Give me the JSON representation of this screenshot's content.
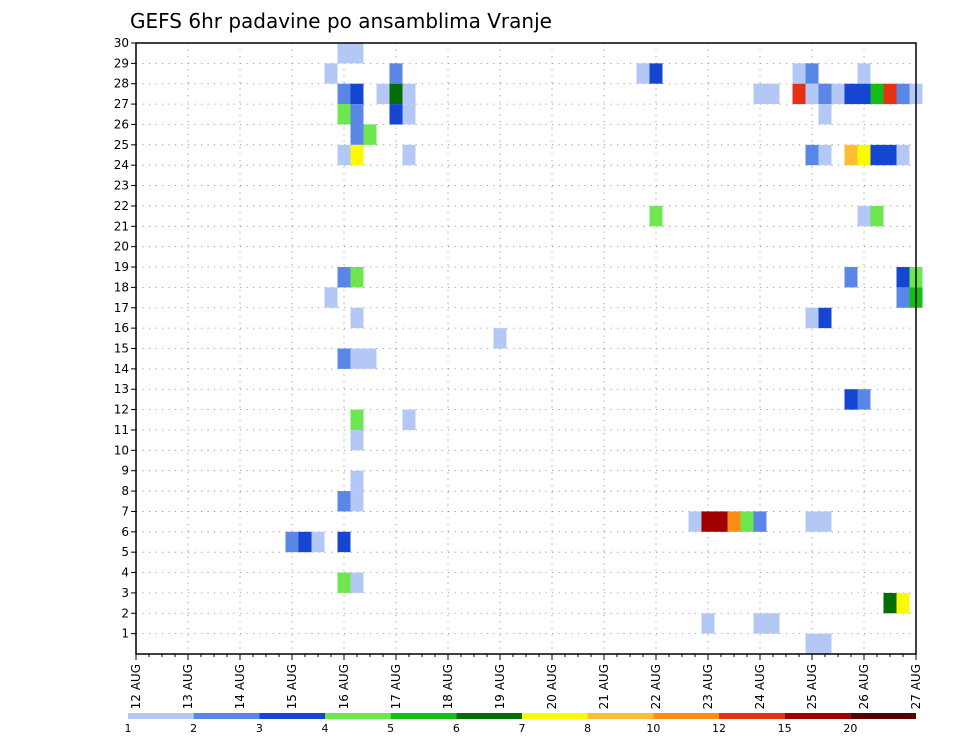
{
  "chart_data": {
    "type": "heatmap",
    "title": "GEFS 6hr padavine po ansamblima Vranje",
    "xlabel": "",
    "ylabel": "",
    "x_tick_labels": [
      "12 AUG",
      "13 AUG",
      "14 AUG",
      "15 AUG",
      "16 AUG",
      "17 AUG",
      "18 AUG",
      "19 AUG",
      "20 AUG",
      "21 AUG",
      "22 AUG",
      "23 AUG",
      "24 AUG",
      "25 AUG",
      "26 AUG",
      "27 AUG"
    ],
    "y_tick_labels": [
      "1",
      "2",
      "3",
      "4",
      "5",
      "6",
      "7",
      "8",
      "9",
      "10",
      "11",
      "12",
      "13",
      "14",
      "15",
      "16",
      "17",
      "18",
      "19",
      "20",
      "21",
      "22",
      "23",
      "24",
      "25",
      "26",
      "27",
      "28",
      "29",
      "30"
    ],
    "x_range": [
      "12 AUG 00Z",
      "27 AUG 00Z"
    ],
    "time_step_hours": 6,
    "y_range": [
      0,
      30
    ],
    "grid": true,
    "legend": {
      "placement": "bottom",
      "levels": [
        1,
        2,
        3,
        4,
        5,
        6,
        7,
        8,
        10,
        12,
        15,
        20
      ],
      "colors": [
        "#b4c8f5",
        "#5a87e6",
        "#1446d2",
        "#6ee650",
        "#14be14",
        "#006e00",
        "#fafa00",
        "#ffbe32",
        "#ff8c14",
        "#e63214",
        "#a00000",
        "#5a0000"
      ]
    },
    "cells": [
      {
        "t": "16 AUG 00Z",
        "m": 30,
        "v": 1
      },
      {
        "t": "16 AUG 06Z",
        "m": 30,
        "v": 1
      },
      {
        "t": "15 AUG 18Z",
        "m": 29,
        "v": 1
      },
      {
        "t": "17 AUG 00Z",
        "m": 29,
        "v": 2
      },
      {
        "t": "21 AUG 18Z",
        "m": 29,
        "v": 1
      },
      {
        "t": "22 AUG 00Z",
        "m": 29,
        "v": 3
      },
      {
        "t": "24 AUG 18Z",
        "m": 29,
        "v": 1
      },
      {
        "t": "25 AUG 00Z",
        "m": 29,
        "v": 2
      },
      {
        "t": "26 AUG 00Z",
        "m": 29,
        "v": 1
      },
      {
        "t": "16 AUG 00Z",
        "m": 28,
        "v": 2
      },
      {
        "t": "16 AUG 06Z",
        "m": 28,
        "v": 3
      },
      {
        "t": "16 AUG 18Z",
        "m": 28,
        "v": 1
      },
      {
        "t": "17 AUG 00Z",
        "m": 28,
        "v": 6
      },
      {
        "t": "17 AUG 06Z",
        "m": 28,
        "v": 1
      },
      {
        "t": "24 AUG 00Z",
        "m": 28,
        "v": 1
      },
      {
        "t": "24 AUG 06Z",
        "m": 28,
        "v": 1
      },
      {
        "t": "24 AUG 18Z",
        "m": 28,
        "v": 12
      },
      {
        "t": "25 AUG 00Z",
        "m": 28,
        "v": 1
      },
      {
        "t": "25 AUG 06Z",
        "m": 28,
        "v": 2
      },
      {
        "t": "25 AUG 12Z",
        "m": 28,
        "v": 1
      },
      {
        "t": "25 AUG 18Z",
        "m": 28,
        "v": 3
      },
      {
        "t": "26 AUG 00Z",
        "m": 28,
        "v": 3
      },
      {
        "t": "26 AUG 06Z",
        "m": 28,
        "v": 5
      },
      {
        "t": "26 AUG 12Z",
        "m": 28,
        "v": 12
      },
      {
        "t": "26 AUG 18Z",
        "m": 28,
        "v": 2
      },
      {
        "t": "27 AUG 00Z",
        "m": 28,
        "v": 1
      },
      {
        "t": "16 AUG 00Z",
        "m": 27,
        "v": 4
      },
      {
        "t": "16 AUG 06Z",
        "m": 27,
        "v": 2
      },
      {
        "t": "17 AUG 00Z",
        "m": 27,
        "v": 3
      },
      {
        "t": "17 AUG 06Z",
        "m": 27,
        "v": 1
      },
      {
        "t": "25 AUG 06Z",
        "m": 27,
        "v": 1
      },
      {
        "t": "16 AUG 06Z",
        "m": 26,
        "v": 2
      },
      {
        "t": "16 AUG 12Z",
        "m": 26,
        "v": 4
      },
      {
        "t": "16 AUG 00Z",
        "m": 25,
        "v": 1
      },
      {
        "t": "16 AUG 06Z",
        "m": 25,
        "v": 7
      },
      {
        "t": "17 AUG 06Z",
        "m": 25,
        "v": 1
      },
      {
        "t": "25 AUG 00Z",
        "m": 25,
        "v": 2
      },
      {
        "t": "25 AUG 06Z",
        "m": 25,
        "v": 1
      },
      {
        "t": "25 AUG 18Z",
        "m": 25,
        "v": 8
      },
      {
        "t": "26 AUG 00Z",
        "m": 25,
        "v": 7
      },
      {
        "t": "26 AUG 06Z",
        "m": 25,
        "v": 3
      },
      {
        "t": "26 AUG 12Z",
        "m": 25,
        "v": 3
      },
      {
        "t": "26 AUG 18Z",
        "m": 25,
        "v": 1
      },
      {
        "t": "22 AUG 00Z",
        "m": 22,
        "v": 4
      },
      {
        "t": "26 AUG 00Z",
        "m": 22,
        "v": 1
      },
      {
        "t": "26 AUG 06Z",
        "m": 22,
        "v": 4
      },
      {
        "t": "16 AUG 00Z",
        "m": 19,
        "v": 2
      },
      {
        "t": "16 AUG 06Z",
        "m": 19,
        "v": 4
      },
      {
        "t": "25 AUG 18Z",
        "m": 19,
        "v": 2
      },
      {
        "t": "26 AUG 18Z",
        "m": 19,
        "v": 3
      },
      {
        "t": "27 AUG 00Z",
        "m": 19,
        "v": 4
      },
      {
        "t": "15 AUG 18Z",
        "m": 18,
        "v": 1
      },
      {
        "t": "26 AUG 18Z",
        "m": 18,
        "v": 2
      },
      {
        "t": "27 AUG 00Z",
        "m": 18,
        "v": 5
      },
      {
        "t": "16 AUG 06Z",
        "m": 17,
        "v": 1
      },
      {
        "t": "25 AUG 00Z",
        "m": 17,
        "v": 1
      },
      {
        "t": "25 AUG 06Z",
        "m": 17,
        "v": 3
      },
      {
        "t": "19 AUG 00Z",
        "m": 16,
        "v": 1
      },
      {
        "t": "16 AUG 00Z",
        "m": 15,
        "v": 2
      },
      {
        "t": "16 AUG 06Z",
        "m": 15,
        "v": 1
      },
      {
        "t": "16 AUG 12Z",
        "m": 15,
        "v": 1
      },
      {
        "t": "25 AUG 18Z",
        "m": 13,
        "v": 3
      },
      {
        "t": "26 AUG 00Z",
        "m": 13,
        "v": 2
      },
      {
        "t": "16 AUG 06Z",
        "m": 12,
        "v": 4
      },
      {
        "t": "17 AUG 06Z",
        "m": 12,
        "v": 1
      },
      {
        "t": "16 AUG 06Z",
        "m": 11,
        "v": 1
      },
      {
        "t": "16 AUG 06Z",
        "m": 9,
        "v": 1
      },
      {
        "t": "16 AUG 00Z",
        "m": 8,
        "v": 2
      },
      {
        "t": "16 AUG 06Z",
        "m": 8,
        "v": 1
      },
      {
        "t": "22 AUG 18Z",
        "m": 7,
        "v": 1
      },
      {
        "t": "23 AUG 00Z",
        "m": 7,
        "v": 15
      },
      {
        "t": "23 AUG 06Z",
        "m": 7,
        "v": 15
      },
      {
        "t": "23 AUG 12Z",
        "m": 7,
        "v": 10
      },
      {
        "t": "23 AUG 18Z",
        "m": 7,
        "v": 4
      },
      {
        "t": "24 AUG 00Z",
        "m": 7,
        "v": 2
      },
      {
        "t": "25 AUG 00Z",
        "m": 7,
        "v": 1
      },
      {
        "t": "25 AUG 06Z",
        "m": 7,
        "v": 1
      },
      {
        "t": "15 AUG 00Z",
        "m": 6,
        "v": 2
      },
      {
        "t": "15 AUG 06Z",
        "m": 6,
        "v": 3
      },
      {
        "t": "15 AUG 12Z",
        "m": 6,
        "v": 1
      },
      {
        "t": "16 AUG 00Z",
        "m": 6,
        "v": 3
      },
      {
        "t": "16 AUG 00Z",
        "m": 4,
        "v": 4
      },
      {
        "t": "16 AUG 06Z",
        "m": 4,
        "v": 1
      },
      {
        "t": "26 AUG 12Z",
        "m": 3,
        "v": 6
      },
      {
        "t": "26 AUG 18Z",
        "m": 3,
        "v": 7
      },
      {
        "t": "23 AUG 00Z",
        "m": 2,
        "v": 1
      },
      {
        "t": "24 AUG 00Z",
        "m": 2,
        "v": 1
      },
      {
        "t": "24 AUG 06Z",
        "m": 2,
        "v": 1
      },
      {
        "t": "25 AUG 00Z",
        "m": 1,
        "v": 1
      },
      {
        "t": "25 AUG 06Z",
        "m": 1,
        "v": 1
      }
    ]
  }
}
